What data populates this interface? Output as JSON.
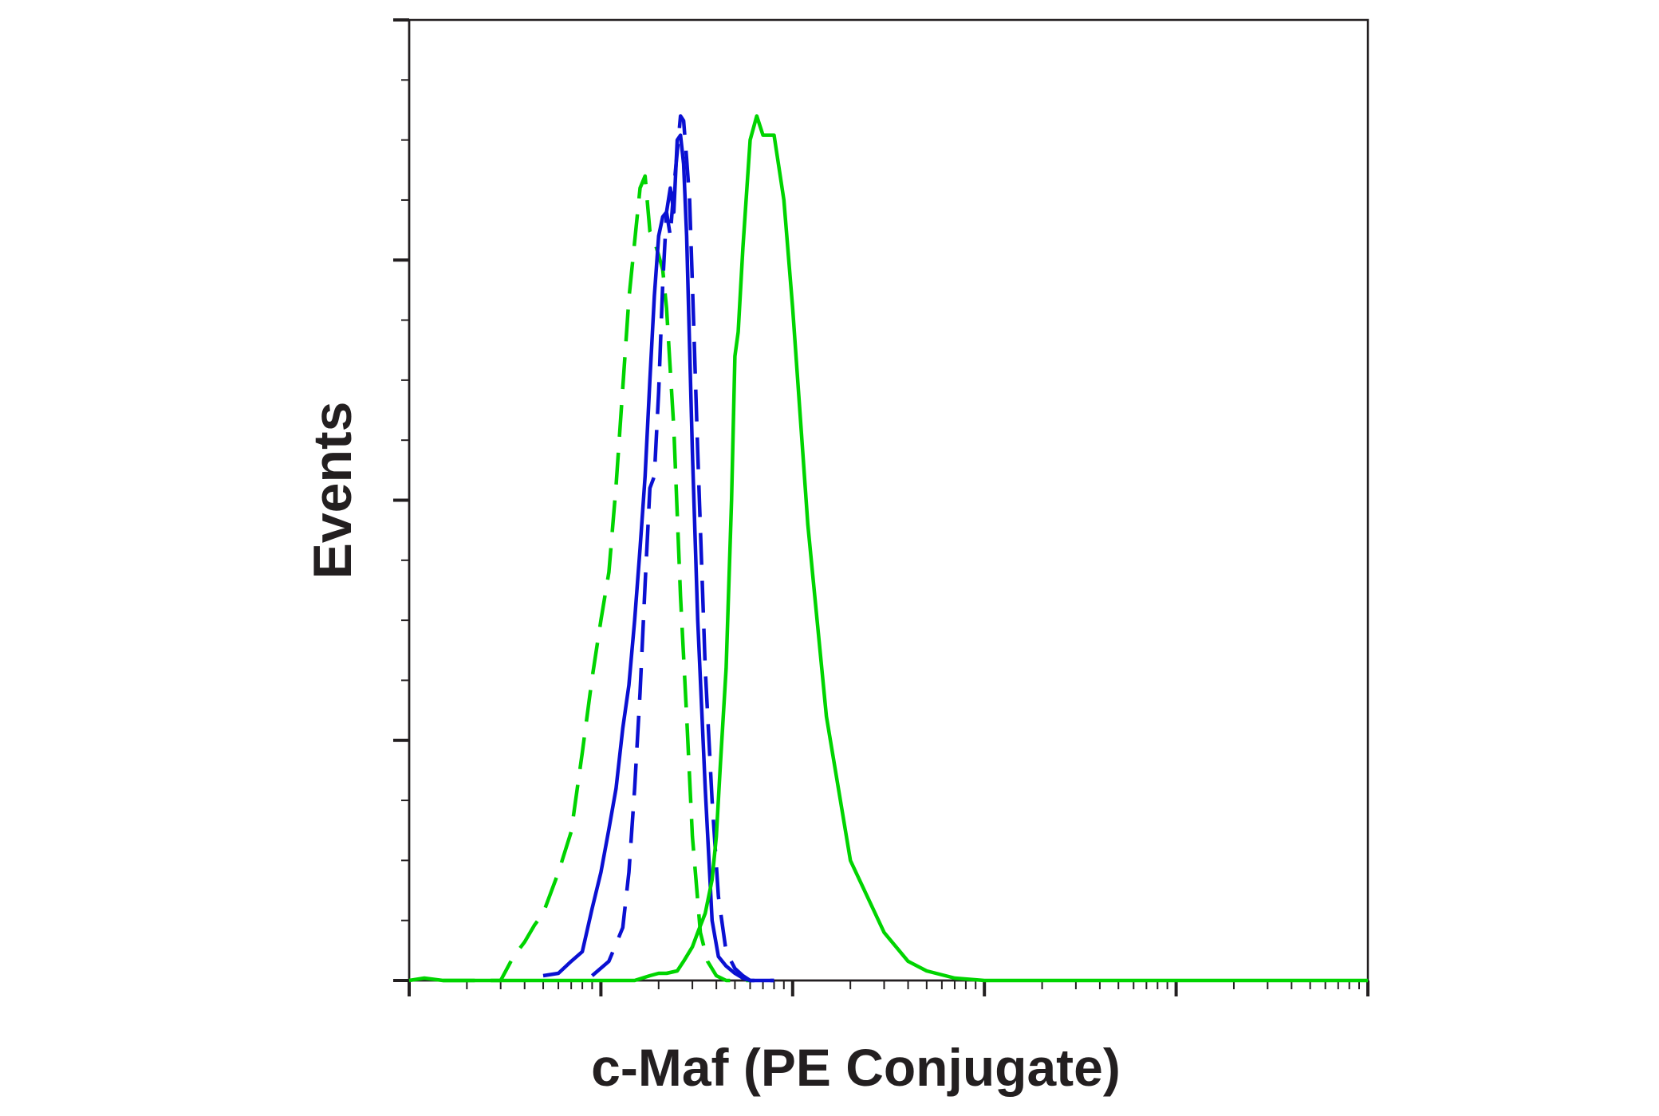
{
  "chart_data": {
    "type": "line",
    "title": "",
    "xlabel": "c-Maf (PE Conjugate)",
    "ylabel": "Events",
    "x_scale": "log",
    "xlim": [
      1,
      100000
    ],
    "ylim": [
      0,
      400
    ],
    "grid": false,
    "legend": "none",
    "tick_labels_shown": false,
    "series": [
      {
        "color": "#00d400",
        "dash": "dashed",
        "x": [
          1.5,
          2,
          2.5,
          3,
          3.5,
          4,
          4.5,
          5,
          6,
          7,
          8,
          9,
          10,
          11,
          12,
          14,
          16,
          17,
          18,
          19,
          20,
          21,
          22,
          24,
          26,
          28,
          30,
          33,
          36,
          40,
          45,
          50,
          60
        ],
        "y": [
          0,
          0,
          0,
          0,
          10,
          16,
          23,
          28,
          45,
          62,
          95,
          126,
          150,
          170,
          206,
          284,
          330,
          335,
          312,
          308,
          302,
          296,
          280,
          230,
          160,
          110,
          60,
          20,
          8,
          2,
          0,
          0,
          0
        ]
      },
      {
        "color": "#0a10d2",
        "dash": "solid",
        "x": [
          5,
          6,
          7,
          8,
          9,
          10,
          11,
          12,
          13,
          14,
          15,
          16,
          17,
          18,
          19,
          20,
          21,
          22,
          23,
          24,
          25,
          26,
          27,
          28,
          30,
          32,
          35,
          38,
          41,
          45,
          50,
          55,
          60,
          70,
          80
        ],
        "y": [
          2,
          3,
          8,
          12,
          30,
          45,
          63,
          80,
          105,
          123,
          150,
          180,
          210,
          250,
          285,
          310,
          318,
          320,
          330,
          320,
          350,
          352,
          340,
          310,
          220,
          150,
          80,
          25,
          10,
          6,
          3,
          1,
          0,
          0,
          0
        ]
      },
      {
        "color": "#0a10d2",
        "dash": "dashed",
        "x": [
          9,
          11,
          13,
          14,
          15,
          16,
          17,
          18,
          19,
          20,
          21,
          22,
          23,
          24,
          25,
          26,
          27,
          28,
          29,
          30,
          32,
          35,
          38,
          41,
          45,
          50,
          55,
          60,
          70,
          80
        ],
        "y": [
          2,
          8,
          22,
          45,
          80,
          120,
          165,
          205,
          210,
          245,
          290,
          320,
          310,
          330,
          345,
          360,
          358,
          342,
          325,
          290,
          220,
          130,
          75,
          35,
          12,
          5,
          2,
          0,
          0,
          0
        ]
      },
      {
        "color": "#00d400",
        "dash": "solid",
        "x": [
          1,
          1.2,
          1.5,
          2,
          3,
          5,
          7,
          10,
          12,
          15,
          18,
          20,
          22,
          25,
          27,
          30,
          32,
          35,
          38,
          40,
          42,
          45,
          48,
          50,
          52,
          55,
          60,
          65,
          70,
          80,
          90,
          100,
          120,
          150,
          200,
          300,
          400,
          500,
          700,
          1000,
          2000,
          5000,
          10000,
          100000
        ],
        "y": [
          0,
          1,
          0,
          0,
          0,
          0,
          0,
          0,
          0,
          0,
          2,
          3,
          3,
          4,
          8,
          14,
          20,
          28,
          42,
          60,
          90,
          130,
          200,
          260,
          270,
          305,
          350,
          360,
          352,
          352,
          325,
          280,
          190,
          110,
          50,
          20,
          8,
          4,
          1,
          0,
          0,
          0,
          0,
          0
        ]
      }
    ]
  }
}
